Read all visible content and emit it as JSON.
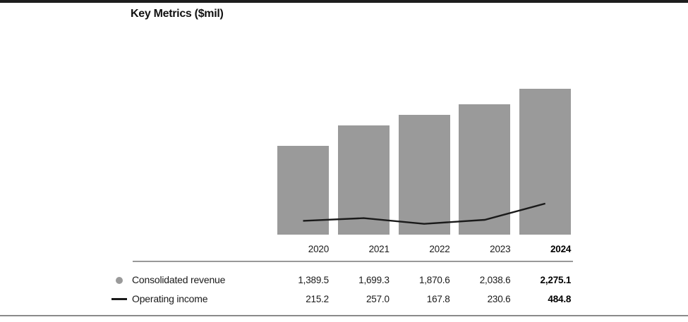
{
  "page": {
    "title": "Key Metrics ($mil)"
  },
  "chart_data": {
    "type": "bar",
    "subtype": "bar+line combo with data table",
    "title": "Key Metrics ($mil)",
    "categories": [
      "2020",
      "2021",
      "2022",
      "2023",
      "2024"
    ],
    "series": [
      {
        "name": "Consolidated revenue",
        "type": "bar",
        "color": "#9a9a9a",
        "values": [
          1389.5,
          1699.3,
          1870.6,
          2038.6,
          2275.1
        ],
        "values_formatted": [
          "1,389.5",
          "1,699.3",
          "1,870.6",
          "2,038.6",
          "2,275.1"
        ]
      },
      {
        "name": "Operating income",
        "type": "line",
        "color": "#1a1a1a",
        "values": [
          215.2,
          257.0,
          167.8,
          230.6,
          484.8
        ],
        "values_formatted": [
          "215.2",
          "257.0",
          "167.8",
          "230.6",
          "484.8"
        ]
      }
    ],
    "ylim": [
      0,
      2275.1
    ],
    "grid": false,
    "axes_shown": false,
    "legend_position": "bottom-left table",
    "legend": [
      {
        "label": "Consolidated revenue",
        "marker": "dot",
        "color": "#9a9a9a"
      },
      {
        "label": "Operating income",
        "marker": "line",
        "color": "#1a1a1a"
      }
    ],
    "emphasis": "2024 column shown in bold"
  },
  "colors": {
    "bar_gray": "#9a9a9a",
    "line_black": "#1a1a1a",
    "rule_gray": "#999999",
    "bottom_rule_gray": "#8a8a8a",
    "top_border_black": "#1d1d1d"
  }
}
